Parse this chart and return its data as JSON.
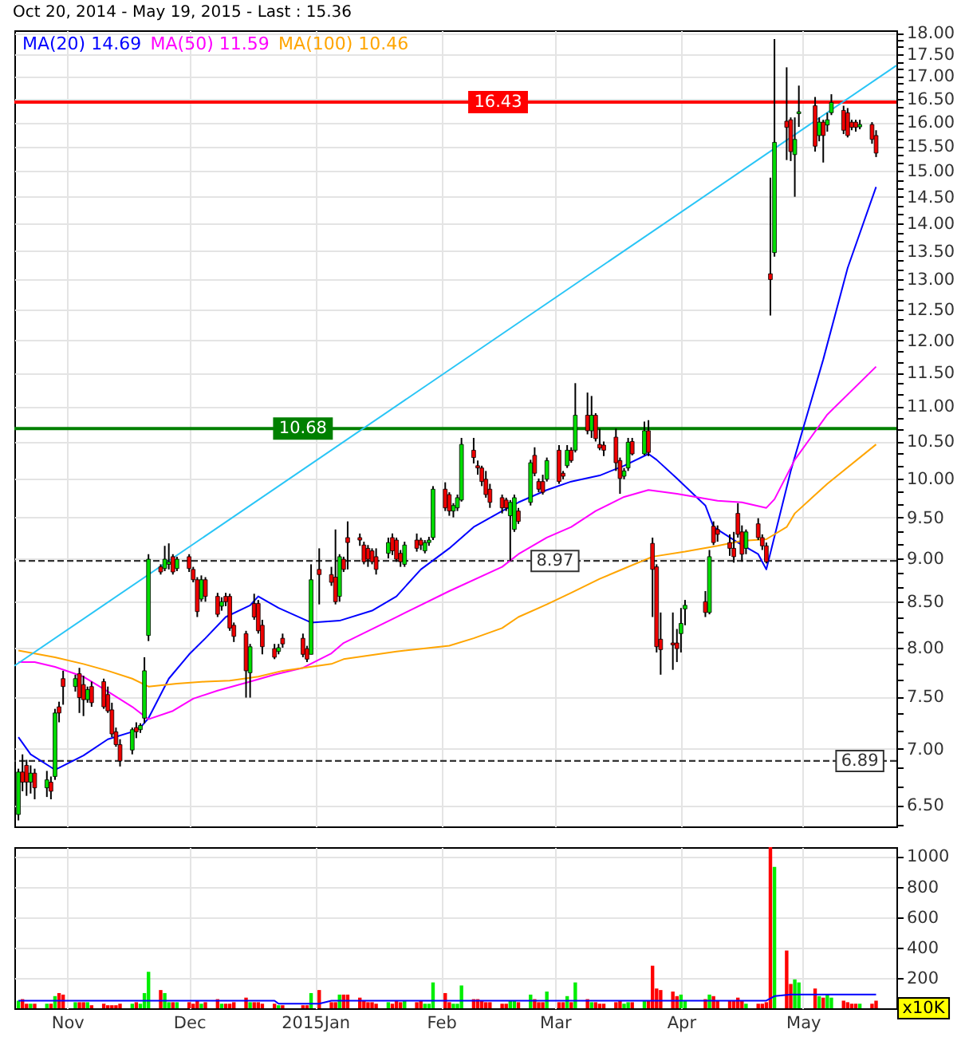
{
  "chart_data": [
    {
      "type": "candlestick",
      "title": "Oct 20, 2014 - May 19, 2015 - Last : 15.36",
      "log": true,
      "grid": true,
      "tick_labels": "y",
      "legend": "top left",
      "xlim": [
        "2014-10-19",
        "2015-05-24"
      ],
      "xticks": [
        {
          "value": "2014-11-01",
          "label": null
        },
        {
          "value": "2014-12-01",
          "label": null
        },
        {
          "value": "2015-01-01",
          "label": null
        },
        {
          "value": "2015-02-01",
          "label": null
        },
        {
          "value": "2015-03-01",
          "label": null
        },
        {
          "value": "2015-04-01",
          "label": null
        },
        {
          "value": "2015-05-01",
          "label": null
        }
      ],
      "ylim": [
        6.32,
        18.06
      ],
      "yticks": [
        {
          "value": 6.333,
          "label": null
        },
        {
          "value": 6.5,
          "label": "6.50"
        },
        {
          "value": 6.667,
          "label": null
        },
        {
          "value": 6.833,
          "label": null
        },
        {
          "value": 7,
          "label": "7.00"
        },
        {
          "value": 7.167,
          "label": null
        },
        {
          "value": 7.333,
          "label": null
        },
        {
          "value": 7.5,
          "label": "7.50"
        },
        {
          "value": 7.667,
          "label": null
        },
        {
          "value": 7.833,
          "label": null
        },
        {
          "value": 8,
          "label": "8.00"
        },
        {
          "value": 8.167,
          "label": null
        },
        {
          "value": 8.333,
          "label": null
        },
        {
          "value": 8.5,
          "label": "8.50"
        },
        {
          "value": 8.667,
          "label": null
        },
        {
          "value": 8.833,
          "label": null
        },
        {
          "value": 9,
          "label": "9.00"
        },
        {
          "value": 9.167,
          "label": null
        },
        {
          "value": 9.333,
          "label": null
        },
        {
          "value": 9.5,
          "label": "9.50"
        },
        {
          "value": 9.667,
          "label": null
        },
        {
          "value": 9.833,
          "label": null
        },
        {
          "value": 10,
          "label": "10.00"
        },
        {
          "value": 10.167,
          "label": null
        },
        {
          "value": 10.333,
          "label": null
        },
        {
          "value": 10.5,
          "label": "10.50"
        },
        {
          "value": 10.667,
          "label": null
        },
        {
          "value": 10.833,
          "label": null
        },
        {
          "value": 11,
          "label": "11.00"
        },
        {
          "value": 11.167,
          "label": null
        },
        {
          "value": 11.333,
          "label": null
        },
        {
          "value": 11.5,
          "label": "11.50"
        },
        {
          "value": 11.667,
          "label": null
        },
        {
          "value": 11.833,
          "label": null
        },
        {
          "value": 12,
          "label": "12.00"
        },
        {
          "value": 12.167,
          "label": null
        },
        {
          "value": 12.333,
          "label": null
        },
        {
          "value": 12.5,
          "label": "12.50"
        },
        {
          "value": 12.667,
          "label": null
        },
        {
          "value": 12.833,
          "label": null
        },
        {
          "value": 13,
          "label": "13.00"
        },
        {
          "value": 13.167,
          "label": null
        },
        {
          "value": 13.333,
          "label": null
        },
        {
          "value": 13.5,
          "label": "13.50"
        },
        {
          "value": 13.667,
          "label": null
        },
        {
          "value": 13.833,
          "label": null
        },
        {
          "value": 14,
          "label": "14.00"
        },
        {
          "value": 14.167,
          "label": null
        },
        {
          "value": 14.333,
          "label": null
        },
        {
          "value": 14.5,
          "label": "14.50"
        },
        {
          "value": 14.667,
          "label": null
        },
        {
          "value": 14.833,
          "label": null
        },
        {
          "value": 15,
          "label": "15.00"
        },
        {
          "value": 15.167,
          "label": null
        },
        {
          "value": 15.333,
          "label": null
        },
        {
          "value": 15.5,
          "label": "15.50"
        },
        {
          "value": 15.667,
          "label": null
        },
        {
          "value": 15.833,
          "label": null
        },
        {
          "value": 16,
          "label": "16.00"
        },
        {
          "value": 16.167,
          "label": null
        },
        {
          "value": 16.333,
          "label": null
        },
        {
          "value": 16.5,
          "label": "16.50"
        },
        {
          "value": 16.667,
          "label": null
        },
        {
          "value": 16.833,
          "label": null
        },
        {
          "value": 17,
          "label": "17.00"
        },
        {
          "value": 17.167,
          "label": null
        },
        {
          "value": 17.333,
          "label": null
        },
        {
          "value": 17.5,
          "label": "17.50"
        },
        {
          "value": 17.667,
          "label": null
        },
        {
          "value": 17.833,
          "label": null
        },
        {
          "value": 18,
          "label": "18.00"
        }
      ],
      "ref_lines": [
        {
          "axis": "y",
          "value": 16.43,
          "color": "#ff0000"
        },
        {
          "axis": "y",
          "value": 10.68,
          "color": "#008000"
        },
        {
          "axis": "y",
          "value": 8.97,
          "color": "#333333",
          "line_style": "dashed"
        },
        {
          "axis": "y",
          "value": 6.89,
          "color": "#333333",
          "line_style": "dashed"
        }
      ],
      "annotations": [
        {
          "text": "16.43",
          "x": "2015-02-15",
          "y": 16.43
        },
        {
          "text": "10.68",
          "x": "2014-12-29",
          "y": 10.68
        },
        {
          "text": "8.97",
          "x": "2015-03-01",
          "y": 8.97
        },
        {
          "text": "6.89",
          "x": "2015-05-15",
          "y": 6.89
        }
      ],
      "series": [
        {
          "type": "line",
          "name": "MA(20) 14.69",
          "color": "#0000ff",
          "x": [
            "2014-10-20",
            "2014-10-23",
            "2014-10-29",
            "2014-11-05",
            "2014-11-11",
            "2014-11-17",
            "2014-11-19",
            "2014-11-21",
            "2014-11-26",
            "2014-12-01",
            "2014-12-05",
            "2014-12-10",
            "2014-12-16",
            "2014-12-18",
            "2014-12-23",
            "2014-12-31",
            "2015-01-07",
            "2015-01-15",
            "2015-01-21",
            "2015-01-27",
            "2015-02-03",
            "2015-02-09",
            "2015-02-16",
            "2015-02-20",
            "2015-02-27",
            "2015-03-05",
            "2015-03-12",
            "2015-03-18",
            "2015-03-24",
            "2015-03-26",
            "2015-03-31",
            "2015-04-07",
            "2015-04-09",
            "2015-04-15",
            "2015-04-20",
            "2015-04-22",
            "2015-04-28",
            "2015-05-06",
            "2015-05-12",
            "2015-05-19"
          ],
          "values": [
            7.11,
            6.95,
            6.81,
            6.94,
            7.09,
            7.16,
            7.2,
            7.29,
            7.68,
            7.93,
            8.1,
            8.33,
            8.46,
            8.56,
            8.43,
            8.27,
            8.29,
            8.4,
            8.56,
            8.87,
            9.12,
            9.38,
            9.58,
            9.69,
            9.85,
            9.96,
            10.04,
            10.17,
            10.33,
            10.25,
            10.0,
            9.65,
            9.38,
            9.19,
            9.05,
            8.87,
            10.1,
            11.7,
            13.2,
            14.69
          ]
        },
        {
          "type": "line",
          "name": "MA(50) 11.59",
          "color": "#ff00ff",
          "x": [
            "2014-10-20",
            "2014-10-24",
            "2014-10-29",
            "2014-11-05",
            "2014-11-11",
            "2014-11-17",
            "2014-11-21",
            "2014-11-27",
            "2014-12-02",
            "2014-12-08",
            "2014-12-16",
            "2014-12-22",
            "2014-12-29",
            "2015-01-05",
            "2015-01-08",
            "2015-01-21",
            "2015-02-03",
            "2015-02-16",
            "2015-02-20",
            "2015-02-27",
            "2015-03-05",
            "2015-03-11",
            "2015-03-18",
            "2015-03-24",
            "2015-03-31",
            "2015-04-10",
            "2015-04-16",
            "2015-04-22",
            "2015-04-24",
            "2015-04-29",
            "2015-05-07",
            "2015-05-19"
          ],
          "values": [
            7.85,
            7.85,
            7.8,
            7.7,
            7.55,
            7.4,
            7.28,
            7.36,
            7.48,
            7.56,
            7.65,
            7.72,
            7.79,
            7.94,
            8.05,
            8.33,
            8.62,
            8.9,
            9.05,
            9.25,
            9.38,
            9.58,
            9.76,
            9.85,
            9.8,
            9.71,
            9.69,
            9.62,
            9.73,
            10.25,
            10.88,
            11.59
          ]
        },
        {
          "type": "line",
          "name": "MA(100) 10.46",
          "color": "#ffa500",
          "x": [
            "2014-10-20",
            "2014-10-29",
            "2014-11-05",
            "2014-11-11",
            "2014-11-17",
            "2014-11-21",
            "2014-11-28",
            "2014-12-05",
            "2014-12-11",
            "2014-12-18",
            "2014-12-24",
            "2015-01-05",
            "2015-01-08",
            "2015-01-21",
            "2015-02-03",
            "2015-02-09",
            "2015-02-16",
            "2015-02-20",
            "2015-02-27",
            "2015-03-05",
            "2015-03-12",
            "2015-03-18",
            "2015-03-25",
            "2015-04-02",
            "2015-04-10",
            "2015-04-16",
            "2015-04-22",
            "2015-04-27",
            "2015-04-29",
            "2015-05-07",
            "2015-05-19"
          ],
          "values": [
            7.97,
            7.9,
            7.83,
            7.76,
            7.68,
            7.6,
            7.63,
            7.65,
            7.66,
            7.7,
            7.76,
            7.83,
            7.88,
            7.96,
            8.02,
            8.1,
            8.21,
            8.33,
            8.47,
            8.6,
            8.76,
            8.88,
            9.02,
            9.08,
            9.15,
            9.21,
            9.23,
            9.38,
            9.55,
            9.93,
            10.46
          ]
        },
        {
          "type": "line",
          "color": "#29c5f6",
          "x": [
            "2014-10-19",
            "2015-05-24"
          ],
          "values": [
            7.81,
            17.24
          ]
        },
        {
          "color": "#00dd00",
          "x": [
            "2014-10-20",
            "2014-10-23",
            "2014-10-27",
            "2014-10-29",
            "2014-11-03",
            "2014-11-06",
            "2014-11-17",
            "2014-11-19",
            "2014-11-20",
            "2014-11-21",
            "2014-11-25",
            "2014-11-26",
            "2014-11-28",
            "2014-12-04",
            "2014-12-09",
            "2014-12-16",
            "2014-12-23",
            "2014-12-31",
            "2015-01-07",
            "2015-01-19",
            "2015-01-23",
            "2015-01-28",
            "2015-01-29",
            "2015-01-30",
            "2015-02-04",
            "2015-02-05",
            "2015-02-06",
            "2015-02-18",
            "2015-02-19",
            "2015-02-23",
            "2015-02-27",
            "2015-03-04",
            "2015-03-06",
            "2015-03-10",
            "2015-03-18",
            "2015-03-19",
            "2015-03-23",
            "2015-04-01",
            "2015-04-02",
            "2015-04-08",
            "2015-04-17",
            "2015-04-24",
            "2015-04-29",
            "2015-04-30",
            "2015-05-05",
            "2015-05-07",
            "2015-05-08",
            "2015-05-15"
          ],
          "ohlc": [
            [
              6.42,
              6.82,
              6.37,
              6.79
            ],
            [
              6.7,
              6.85,
              6.6,
              6.78
            ],
            [
              6.65,
              6.8,
              6.57,
              6.72
            ],
            [
              6.75,
              7.38,
              6.72,
              7.34
            ],
            [
              7.6,
              7.72,
              7.55,
              7.68
            ],
            [
              7.47,
              7.6,
              7.44,
              7.57
            ],
            [
              6.99,
              7.2,
              6.95,
              7.18
            ],
            [
              7.18,
              7.24,
              7.15,
              7.22
            ],
            [
              7.29,
              7.9,
              7.24,
              7.76
            ],
            [
              8.13,
              9.05,
              8.07,
              8.99
            ],
            [
              8.88,
              9.15,
              8.85,
              8.99
            ],
            [
              8.93,
              9.18,
              8.87,
              8.96
            ],
            [
              8.88,
              9.02,
              8.85,
              8.99
            ],
            [
              8.53,
              8.8,
              8.5,
              8.75
            ],
            [
              8.45,
              8.55,
              8.4,
              8.5
            ],
            [
              7.74,
              8.04,
              7.49,
              8.01
            ],
            [
              7.96,
              8.04,
              7.93,
              8.0
            ],
            [
              7.93,
              8.93,
              7.93,
              8.75
            ],
            [
              8.56,
              9.05,
              8.5,
              9.02
            ],
            [
              9.06,
              9.25,
              9.0,
              9.19
            ],
            [
              8.93,
              9.2,
              8.9,
              9.16
            ],
            [
              9.09,
              9.22,
              9.06,
              9.19
            ],
            [
              9.19,
              9.26,
              9.15,
              9.22
            ],
            [
              9.25,
              9.9,
              9.22,
              9.86
            ],
            [
              9.58,
              9.68,
              9.5,
              9.65
            ],
            [
              9.62,
              9.79,
              9.58,
              9.75
            ],
            [
              9.72,
              10.55,
              9.7,
              10.46
            ],
            [
              9.52,
              9.72,
              8.97,
              9.69
            ],
            [
              9.35,
              9.79,
              9.32,
              9.75
            ],
            [
              9.69,
              10.25,
              9.65,
              10.21
            ],
            [
              9.99,
              10.28,
              9.96,
              10.24
            ],
            [
              10.17,
              10.45,
              10.14,
              10.38
            ],
            [
              10.38,
              11.34,
              10.35,
              10.87
            ],
            [
              10.65,
              11.15,
              10.55,
              10.87
            ],
            [
              10.03,
              10.14,
              9.99,
              10.1
            ],
            [
              10.14,
              10.55,
              10.1,
              10.49
            ],
            [
              10.33,
              10.78,
              10.31,
              10.65
            ],
            [
              8.15,
              8.43,
              7.95,
              8.26
            ],
            [
              8.42,
              8.52,
              8.24,
              8.46
            ],
            [
              8.38,
              9.1,
              8.36,
              9.02
            ],
            [
              9.12,
              9.35,
              9.05,
              9.32
            ],
            [
              13.47,
              17.85,
              13.4,
              15.58
            ],
            [
              15.33,
              16.1,
              14.5,
              15.64
            ],
            [
              16.18,
              16.79,
              15.9,
              16.22
            ],
            [
              15.72,
              16.1,
              15.6,
              16.0
            ],
            [
              15.94,
              16.2,
              15.8,
              16.05
            ],
            [
              16.2,
              16.6,
              16.15,
              16.42
            ],
            [
              15.9,
              16.05,
              15.85,
              15.95
            ]
          ]
        },
        {
          "color": "#ee0000",
          "x": [
            "2014-10-21",
            "2014-10-22",
            "2014-10-24",
            "2014-10-28",
            "2014-10-30",
            "2014-10-31",
            "2014-11-04",
            "2014-11-05",
            "2014-11-07",
            "2014-11-10",
            "2014-11-11",
            "2014-11-12",
            "2014-11-13",
            "2014-11-14",
            "2014-11-18",
            "2014-11-24",
            "2014-11-27",
            "2014-12-01",
            "2014-12-02",
            "2014-12-03",
            "2014-12-05",
            "2014-12-08",
            "2014-12-10",
            "2014-12-11",
            "2014-12-12",
            "2014-12-15",
            "2014-12-17",
            "2014-12-18",
            "2014-12-19",
            "2014-12-22",
            "2014-12-24",
            "2014-12-29",
            "2014-12-30",
            "2015-01-02",
            "2015-01-05",
            "2015-01-06",
            "2015-01-08",
            "2015-01-09",
            "2015-01-12",
            "2015-01-13",
            "2015-01-14",
            "2015-01-15",
            "2015-01-16",
            "2015-01-20",
            "2015-01-21",
            "2015-01-22",
            "2015-01-26",
            "2015-01-27",
            "2015-02-02",
            "2015-02-03",
            "2015-02-09",
            "2015-02-10",
            "2015-02-11",
            "2015-02-12",
            "2015-02-13",
            "2015-02-16",
            "2015-02-17",
            "2015-02-20",
            "2015-02-24",
            "2015-02-25",
            "2015-02-26",
            "2015-03-02",
            "2015-03-03",
            "2015-03-05",
            "2015-03-09",
            "2015-03-11",
            "2015-03-12",
            "2015-03-13",
            "2015-03-16",
            "2015-03-17",
            "2015-03-20",
            "2015-03-24",
            "2015-03-25",
            "2015-03-26",
            "2015-03-27",
            "2015-03-30",
            "2015-03-31",
            "2015-04-07",
            "2015-04-09",
            "2015-04-10",
            "2015-04-13",
            "2015-04-14",
            "2015-04-15",
            "2015-04-16",
            "2015-04-20",
            "2015-04-21",
            "2015-04-22",
            "2015-04-23",
            "2015-04-27",
            "2015-04-28",
            "2015-05-04",
            "2015-05-06",
            "2015-05-11",
            "2015-05-12",
            "2015-05-13",
            "2015-05-14",
            "2015-05-18",
            "2015-05-19"
          ],
          "ohlc": [
            [
              6.79,
              6.95,
              6.62,
              6.7
            ],
            [
              6.85,
              6.9,
              6.58,
              6.7
            ],
            [
              6.78,
              6.82,
              6.55,
              6.65
            ],
            [
              6.7,
              6.75,
              6.55,
              6.62
            ],
            [
              7.4,
              7.45,
              7.25,
              7.34
            ],
            [
              7.68,
              7.76,
              7.42,
              7.6
            ],
            [
              7.73,
              7.79,
              7.34,
              7.49
            ],
            [
              7.62,
              7.71,
              7.31,
              7.47
            ],
            [
              7.6,
              7.65,
              7.4,
              7.44
            ],
            [
              7.65,
              7.68,
              7.38,
              7.4
            ],
            [
              7.52,
              7.6,
              7.34,
              7.36
            ],
            [
              7.37,
              7.44,
              7.11,
              7.14
            ],
            [
              7.16,
              7.2,
              7.02,
              7.04
            ],
            [
              7.04,
              7.09,
              6.84,
              6.89
            ],
            [
              7.2,
              7.25,
              7.1,
              7.16
            ],
            [
              8.9,
              8.93,
              8.81,
              8.84
            ],
            [
              9.02,
              9.05,
              8.81,
              8.84
            ],
            [
              9.02,
              9.05,
              8.84,
              8.88
            ],
            [
              8.87,
              8.9,
              8.72,
              8.75
            ],
            [
              8.75,
              8.78,
              8.33,
              8.39
            ],
            [
              8.75,
              8.78,
              8.5,
              8.56
            ],
            [
              8.56,
              8.6,
              8.33,
              8.36
            ],
            [
              8.56,
              8.6,
              8.45,
              8.5
            ],
            [
              8.56,
              8.59,
              8.18,
              8.21
            ],
            [
              8.24,
              8.27,
              8.06,
              8.12
            ],
            [
              8.15,
              8.18,
              7.49,
              7.76
            ],
            [
              8.48,
              8.59,
              8.3,
              8.33
            ],
            [
              8.48,
              8.52,
              8.15,
              8.18
            ],
            [
              8.24,
              8.3,
              7.93,
              8.01
            ],
            [
              7.99,
              8.04,
              7.88,
              7.9
            ],
            [
              8.1,
              8.15,
              8.0,
              8.04
            ],
            [
              8.1,
              8.15,
              7.9,
              7.93
            ],
            [
              7.99,
              8.02,
              7.85,
              7.88
            ],
            [
              8.87,
              9.12,
              8.47,
              8.81
            ],
            [
              8.81,
              8.9,
              8.68,
              8.72
            ],
            [
              8.78,
              9.35,
              8.47,
              8.5
            ],
            [
              8.99,
              9.02,
              8.84,
              8.87
            ],
            [
              9.25,
              9.45,
              8.87,
              9.19
            ],
            [
              9.25,
              9.3,
              9.15,
              9.22
            ],
            [
              9.16,
              9.2,
              8.93,
              8.96
            ],
            [
              9.12,
              9.16,
              8.9,
              8.99
            ],
            [
              9.09,
              9.12,
              8.93,
              8.96
            ],
            [
              9.02,
              9.12,
              8.81,
              8.87
            ],
            [
              9.25,
              9.3,
              9.04,
              9.09
            ],
            [
              9.22,
              9.25,
              8.96,
              8.99
            ],
            [
              9.06,
              9.1,
              8.9,
              8.96
            ],
            [
              9.22,
              9.3,
              9.08,
              9.12
            ],
            [
              9.22,
              9.25,
              9.1,
              9.16
            ],
            [
              9.86,
              9.95,
              9.58,
              9.62
            ],
            [
              9.79,
              9.82,
              9.52,
              9.58
            ],
            [
              10.38,
              10.55,
              10.2,
              10.28
            ],
            [
              10.17,
              10.24,
              10.05,
              10.14
            ],
            [
              10.14,
              10.17,
              9.9,
              9.96
            ],
            [
              9.99,
              10.1,
              9.75,
              9.79
            ],
            [
              9.86,
              9.93,
              9.62,
              9.69
            ],
            [
              9.75,
              9.79,
              9.55,
              9.62
            ],
            [
              9.72,
              9.75,
              9.58,
              9.62
            ],
            [
              9.58,
              9.62,
              9.42,
              9.45
            ],
            [
              10.31,
              10.42,
              10.03,
              10.07
            ],
            [
              9.96,
              10.0,
              9.82,
              9.86
            ],
            [
              9.96,
              10.05,
              9.79,
              9.82
            ],
            [
              10.38,
              10.45,
              9.93,
              9.96
            ],
            [
              10.07,
              10.1,
              9.99,
              10.03
            ],
            [
              10.38,
              10.42,
              10.21,
              10.24
            ],
            [
              10.87,
              11.2,
              10.6,
              10.65
            ],
            [
              10.87,
              10.9,
              10.5,
              10.54
            ],
            [
              10.46,
              10.68,
              10.38,
              10.41
            ],
            [
              10.45,
              10.5,
              10.3,
              10.38
            ],
            [
              10.56,
              10.68,
              10.1,
              10.21
            ],
            [
              10.24,
              10.28,
              9.8,
              10.0
            ],
            [
              10.5,
              10.55,
              10.31,
              10.33
            ],
            [
              10.65,
              10.8,
              10.3,
              10.35
            ],
            [
              9.18,
              9.25,
              8.33,
              8.87
            ],
            [
              8.9,
              8.93,
              7.95,
              8.01
            ],
            [
              8.09,
              8.38,
              7.72,
              7.98
            ],
            [
              8.05,
              8.38,
              7.77,
              8.03
            ],
            [
              8.05,
              8.2,
              7.85,
              7.99
            ],
            [
              8.5,
              8.62,
              8.33,
              8.38
            ],
            [
              9.39,
              9.45,
              9.16,
              9.19
            ],
            [
              9.35,
              9.4,
              9.2,
              9.29
            ],
            [
              9.19,
              9.29,
              9.03,
              9.12
            ],
            [
              9.12,
              9.32,
              8.95,
              9.02
            ],
            [
              9.55,
              9.68,
              9.25,
              9.29
            ],
            [
              9.32,
              9.4,
              8.96,
              9.05
            ],
            [
              9.42,
              9.49,
              9.22,
              9.25
            ],
            [
              9.25,
              9.29,
              9.1,
              9.15
            ],
            [
              9.15,
              9.19,
              8.94,
              8.96
            ],
            [
              13.1,
              14.87,
              12.4,
              13.0
            ],
            [
              16.02,
              17.2,
              15.22,
              15.89
            ],
            [
              16.05,
              16.1,
              15.2,
              15.39
            ],
            [
              16.35,
              16.54,
              15.39,
              15.5
            ],
            [
              16.0,
              16.05,
              15.17,
              15.72
            ],
            [
              16.25,
              16.35,
              15.75,
              15.83
            ],
            [
              16.2,
              16.3,
              15.68,
              15.72
            ],
            [
              16.0,
              16.05,
              15.83,
              15.89
            ],
            [
              16.0,
              16.05,
              15.8,
              15.89
            ],
            [
              15.95,
              16.0,
              15.55,
              15.64
            ],
            [
              15.72,
              15.83,
              15.28,
              15.36
            ]
          ]
        }
      ]
    },
    {
      "type": "bar",
      "grid": true,
      "ylabel": "x10K",
      "xlim": [
        "2014-10-19",
        "2015-05-24"
      ],
      "xticks": [
        {
          "value": "2014-11-01",
          "label": "Nov"
        },
        {
          "value": "2014-12-01",
          "label": "Dec"
        },
        {
          "value": "2015-01-01",
          "label": "2015Jan"
        },
        {
          "value": "2015-02-01",
          "label": "Feb"
        },
        {
          "value": "2015-03-01",
          "label": "Mar"
        },
        {
          "value": "2015-04-01",
          "label": "Apr"
        },
        {
          "value": "2015-05-01",
          "label": "May"
        }
      ],
      "ylim": [
        0,
        1060
      ],
      "yticks": [
        200,
        400,
        600,
        800,
        1000
      ],
      "series": [
        {
          "color": "#00ee00",
          "x": [
            "2014-10-20",
            "2014-10-23",
            "2014-10-27",
            "2014-10-29",
            "2014-11-03",
            "2014-11-06",
            "2014-11-17",
            "2014-11-19",
            "2014-11-20",
            "2014-11-21",
            "2014-11-25",
            "2014-11-26",
            "2014-11-28",
            "2014-12-04",
            "2014-12-09",
            "2014-12-16",
            "2014-12-23",
            "2014-12-31",
            "2015-01-07",
            "2015-01-19",
            "2015-01-23",
            "2015-01-28",
            "2015-01-29",
            "2015-01-30",
            "2015-02-04",
            "2015-02-05",
            "2015-02-06",
            "2015-02-18",
            "2015-02-19",
            "2015-02-23",
            "2015-02-27",
            "2015-03-04",
            "2015-03-06",
            "2015-03-10",
            "2015-03-18",
            "2015-03-19",
            "2015-03-23",
            "2015-04-01",
            "2015-04-02",
            "2015-04-08",
            "2015-04-17",
            "2015-04-24",
            "2015-04-29",
            "2015-04-30",
            "2015-05-05",
            "2015-05-07",
            "2015-05-08",
            "2015-05-15"
          ],
          "values": [
            50,
            30,
            30,
            80,
            40,
            40,
            30,
            30,
            100,
            240,
            100,
            40,
            40,
            30,
            30,
            40,
            20,
            100,
            90,
            40,
            50,
            30,
            30,
            170,
            30,
            30,
            150,
            50,
            50,
            90,
            110,
            80,
            170,
            40,
            30,
            40,
            50,
            90,
            50,
            90,
            30,
            930,
            190,
            170,
            80,
            90,
            70,
            30
          ]
        },
        {
          "color": "#ff0000",
          "x": [
            "2014-10-21",
            "2014-10-22",
            "2014-10-24",
            "2014-10-28",
            "2014-10-30",
            "2014-10-31",
            "2014-11-04",
            "2014-11-05",
            "2014-11-07",
            "2014-11-10",
            "2014-11-11",
            "2014-11-12",
            "2014-11-13",
            "2014-11-14",
            "2014-11-18",
            "2014-11-24",
            "2014-11-27",
            "2014-12-01",
            "2014-12-02",
            "2014-12-03",
            "2014-12-05",
            "2014-12-08",
            "2014-12-10",
            "2014-12-11",
            "2014-12-12",
            "2014-12-15",
            "2014-12-17",
            "2014-12-18",
            "2014-12-19",
            "2014-12-22",
            "2014-12-24",
            "2014-12-29",
            "2014-12-30",
            "2015-01-02",
            "2015-01-05",
            "2015-01-06",
            "2015-01-08",
            "2015-01-09",
            "2015-01-12",
            "2015-01-13",
            "2015-01-14",
            "2015-01-15",
            "2015-01-16",
            "2015-01-20",
            "2015-01-21",
            "2015-01-22",
            "2015-01-26",
            "2015-01-27",
            "2015-02-02",
            "2015-02-03",
            "2015-02-09",
            "2015-02-10",
            "2015-02-11",
            "2015-02-12",
            "2015-02-13",
            "2015-02-16",
            "2015-02-17",
            "2015-02-20",
            "2015-02-24",
            "2015-02-25",
            "2015-02-26",
            "2015-03-02",
            "2015-03-03",
            "2015-03-05",
            "2015-03-09",
            "2015-03-11",
            "2015-03-12",
            "2015-03-13",
            "2015-03-16",
            "2015-03-17",
            "2015-03-20",
            "2015-03-24",
            "2015-03-25",
            "2015-03-26",
            "2015-03-27",
            "2015-03-30",
            "2015-03-31",
            "2015-04-07",
            "2015-04-09",
            "2015-04-10",
            "2015-04-13",
            "2015-04-14",
            "2015-04-15",
            "2015-04-16",
            "2015-04-20",
            "2015-04-21",
            "2015-04-22",
            "2015-04-23",
            "2015-04-27",
            "2015-04-28",
            "2015-05-04",
            "2015-05-06",
            "2015-05-11",
            "2015-05-12",
            "2015-05-13",
            "2015-05-14",
            "2015-05-18",
            "2015-05-19"
          ],
          "values": [
            60,
            30,
            30,
            30,
            100,
            90,
            40,
            40,
            20,
            30,
            20,
            20,
            20,
            30,
            40,
            120,
            40,
            40,
            30,
            50,
            40,
            60,
            30,
            30,
            40,
            70,
            40,
            40,
            30,
            30,
            20,
            20,
            20,
            120,
            40,
            40,
            90,
            90,
            70,
            50,
            40,
            40,
            30,
            30,
            50,
            40,
            40,
            50,
            100,
            40,
            60,
            60,
            50,
            40,
            40,
            30,
            30,
            40,
            60,
            40,
            40,
            40,
            40,
            40,
            60,
            40,
            30,
            30,
            40,
            50,
            40,
            50,
            280,
            130,
            120,
            110,
            80,
            60,
            80,
            50,
            50,
            50,
            70,
            50,
            30,
            30,
            40,
            1060,
            380,
            160,
            130,
            70,
            50,
            40,
            30,
            30,
            30,
            50
          ]
        },
        {
          "type": "line",
          "color": "#0000ff",
          "x": [
            "2014-10-20",
            "2014-12-22",
            "2014-12-23",
            "2015-01-02",
            "2015-01-05",
            "2015-04-22",
            "2015-04-24",
            "2015-04-28",
            "2015-05-19"
          ],
          "values": [
            50,
            50,
            30,
            30,
            50,
            50,
            80,
            90,
            90
          ]
        }
      ]
    }
  ]
}
